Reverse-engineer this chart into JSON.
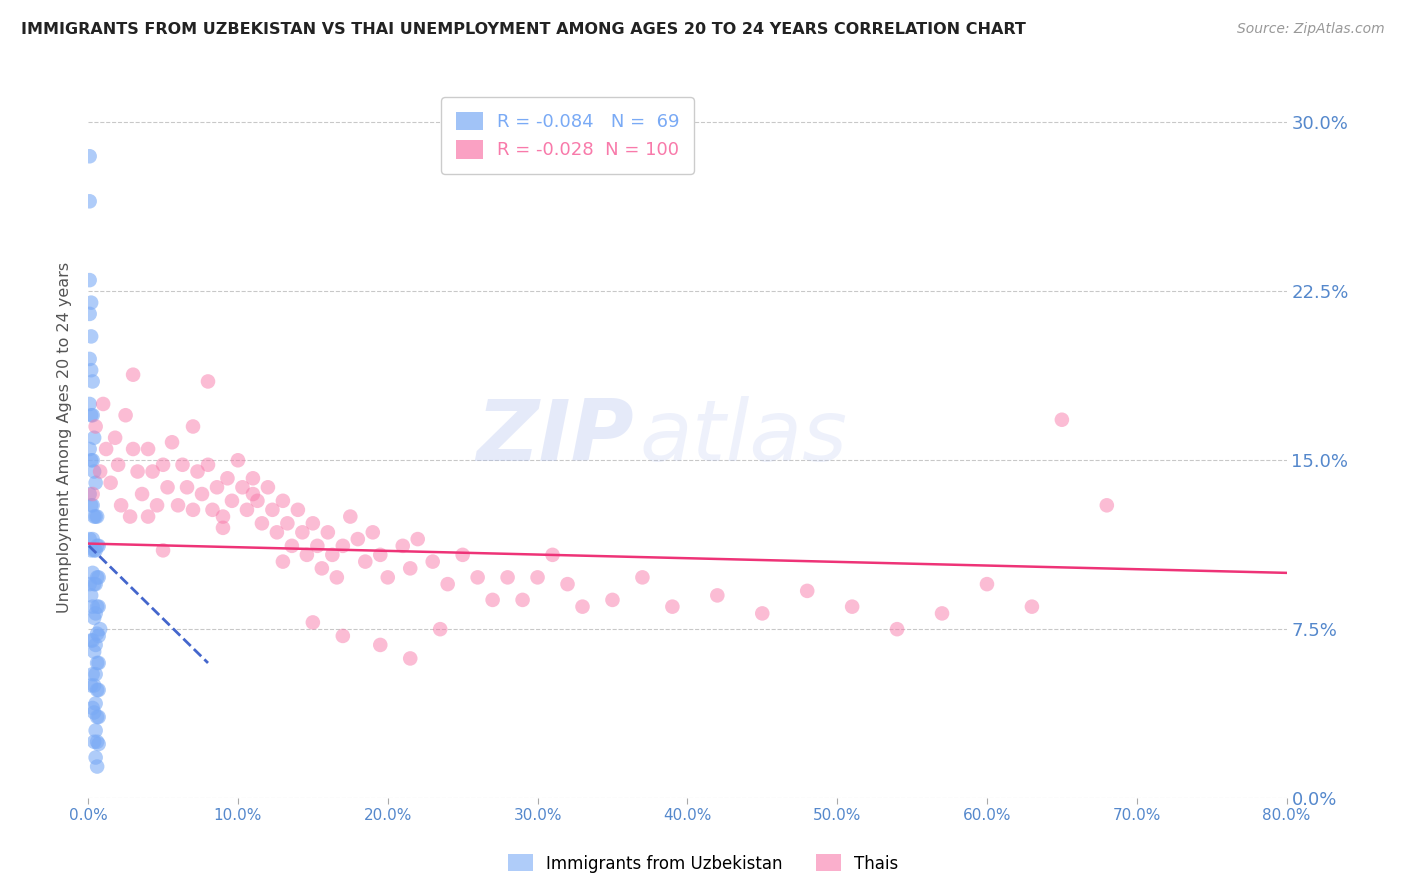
{
  "title": "IMMIGRANTS FROM UZBEKISTAN VS THAI UNEMPLOYMENT AMONG AGES 20 TO 24 YEARS CORRELATION CHART",
  "source": "Source: ZipAtlas.com",
  "ylabel": "Unemployment Among Ages 20 to 24 years",
  "xlim": [
    0.0,
    0.8
  ],
  "ylim": [
    0.0,
    0.32
  ],
  "yticks": [
    0.0,
    0.075,
    0.15,
    0.225,
    0.3
  ],
  "ytick_labels": [
    "0.0%",
    "7.5%",
    "15.0%",
    "22.5%",
    "30.0%"
  ],
  "xticks": [
    0.0,
    0.1,
    0.2,
    0.3,
    0.4,
    0.5,
    0.6,
    0.7,
    0.8
  ],
  "xtick_labels": [
    "0.0%",
    "10.0%",
    "20.0%",
    "30.0%",
    "40.0%",
    "50.0%",
    "60.0%",
    "70.0%",
    "80.0%"
  ],
  "blue_R": -0.084,
  "blue_N": 69,
  "pink_R": -0.028,
  "pink_N": 100,
  "blue_color": "#7aaaf5",
  "pink_color": "#f87aaa",
  "blue_line_color": "#4466cc",
  "pink_line_color": "#ee3377",
  "blue_label": "Immigrants from Uzbekistan",
  "pink_label": "Thais",
  "watermark_zip": "ZIP",
  "watermark_atlas": "atlas",
  "background_color": "#ffffff",
  "grid_color": "#bbbbbb",
  "title_color": "#222222",
  "tick_label_color": "#5588cc",
  "blue_scatter_x": [
    0.001,
    0.001,
    0.001,
    0.001,
    0.001,
    0.001,
    0.001,
    0.001,
    0.001,
    0.001,
    0.002,
    0.002,
    0.002,
    0.002,
    0.002,
    0.002,
    0.002,
    0.002,
    0.002,
    0.002,
    0.003,
    0.003,
    0.003,
    0.003,
    0.003,
    0.003,
    0.003,
    0.003,
    0.003,
    0.003,
    0.004,
    0.004,
    0.004,
    0.004,
    0.004,
    0.004,
    0.004,
    0.004,
    0.004,
    0.004,
    0.005,
    0.005,
    0.005,
    0.005,
    0.005,
    0.005,
    0.005,
    0.005,
    0.005,
    0.005,
    0.006,
    0.006,
    0.006,
    0.006,
    0.006,
    0.006,
    0.006,
    0.006,
    0.006,
    0.006,
    0.007,
    0.007,
    0.007,
    0.007,
    0.007,
    0.007,
    0.007,
    0.007,
    0.008
  ],
  "blue_scatter_y": [
    0.285,
    0.265,
    0.23,
    0.215,
    0.195,
    0.175,
    0.155,
    0.135,
    0.115,
    0.095,
    0.22,
    0.205,
    0.19,
    0.17,
    0.15,
    0.13,
    0.11,
    0.09,
    0.07,
    0.05,
    0.185,
    0.17,
    0.15,
    0.13,
    0.115,
    0.1,
    0.085,
    0.07,
    0.055,
    0.04,
    0.16,
    0.145,
    0.125,
    0.11,
    0.095,
    0.08,
    0.065,
    0.05,
    0.038,
    0.025,
    0.14,
    0.125,
    0.11,
    0.095,
    0.082,
    0.068,
    0.055,
    0.042,
    0.03,
    0.018,
    0.125,
    0.112,
    0.098,
    0.085,
    0.073,
    0.06,
    0.048,
    0.036,
    0.025,
    0.014,
    0.112,
    0.098,
    0.085,
    0.072,
    0.06,
    0.048,
    0.036,
    0.024,
    0.075
  ],
  "pink_scatter_x": [
    0.003,
    0.005,
    0.008,
    0.01,
    0.012,
    0.015,
    0.018,
    0.02,
    0.022,
    0.025,
    0.028,
    0.03,
    0.033,
    0.036,
    0.04,
    0.043,
    0.046,
    0.05,
    0.053,
    0.056,
    0.06,
    0.063,
    0.066,
    0.07,
    0.073,
    0.076,
    0.08,
    0.083,
    0.086,
    0.09,
    0.093,
    0.096,
    0.1,
    0.103,
    0.106,
    0.11,
    0.113,
    0.116,
    0.12,
    0.123,
    0.126,
    0.13,
    0.133,
    0.136,
    0.14,
    0.143,
    0.146,
    0.15,
    0.153,
    0.156,
    0.16,
    0.163,
    0.166,
    0.17,
    0.175,
    0.18,
    0.185,
    0.19,
    0.195,
    0.2,
    0.21,
    0.215,
    0.22,
    0.23,
    0.24,
    0.25,
    0.26,
    0.27,
    0.28,
    0.29,
    0.3,
    0.31,
    0.32,
    0.33,
    0.35,
    0.37,
    0.39,
    0.42,
    0.45,
    0.48,
    0.51,
    0.54,
    0.57,
    0.6,
    0.63,
    0.65,
    0.68,
    0.03,
    0.05,
    0.07,
    0.09,
    0.11,
    0.13,
    0.15,
    0.17,
    0.195,
    0.215,
    0.235,
    0.04,
    0.08
  ],
  "pink_scatter_y": [
    0.135,
    0.165,
    0.145,
    0.175,
    0.155,
    0.14,
    0.16,
    0.148,
    0.13,
    0.17,
    0.125,
    0.155,
    0.145,
    0.135,
    0.155,
    0.145,
    0.13,
    0.148,
    0.138,
    0.158,
    0.13,
    0.148,
    0.138,
    0.128,
    0.145,
    0.135,
    0.148,
    0.128,
    0.138,
    0.125,
    0.142,
    0.132,
    0.15,
    0.138,
    0.128,
    0.142,
    0.132,
    0.122,
    0.138,
    0.128,
    0.118,
    0.132,
    0.122,
    0.112,
    0.128,
    0.118,
    0.108,
    0.122,
    0.112,
    0.102,
    0.118,
    0.108,
    0.098,
    0.112,
    0.125,
    0.115,
    0.105,
    0.118,
    0.108,
    0.098,
    0.112,
    0.102,
    0.115,
    0.105,
    0.095,
    0.108,
    0.098,
    0.088,
    0.098,
    0.088,
    0.098,
    0.108,
    0.095,
    0.085,
    0.088,
    0.098,
    0.085,
    0.09,
    0.082,
    0.092,
    0.085,
    0.075,
    0.082,
    0.095,
    0.085,
    0.168,
    0.13,
    0.188,
    0.11,
    0.165,
    0.12,
    0.135,
    0.105,
    0.078,
    0.072,
    0.068,
    0.062,
    0.075,
    0.125,
    0.185
  ],
  "blue_trendline_x": [
    0.0005,
    0.08
  ],
  "blue_trendline_y": [
    0.112,
    0.06
  ],
  "pink_trendline_x": [
    0.0005,
    0.8
  ],
  "pink_trendline_y": [
    0.113,
    0.1
  ]
}
